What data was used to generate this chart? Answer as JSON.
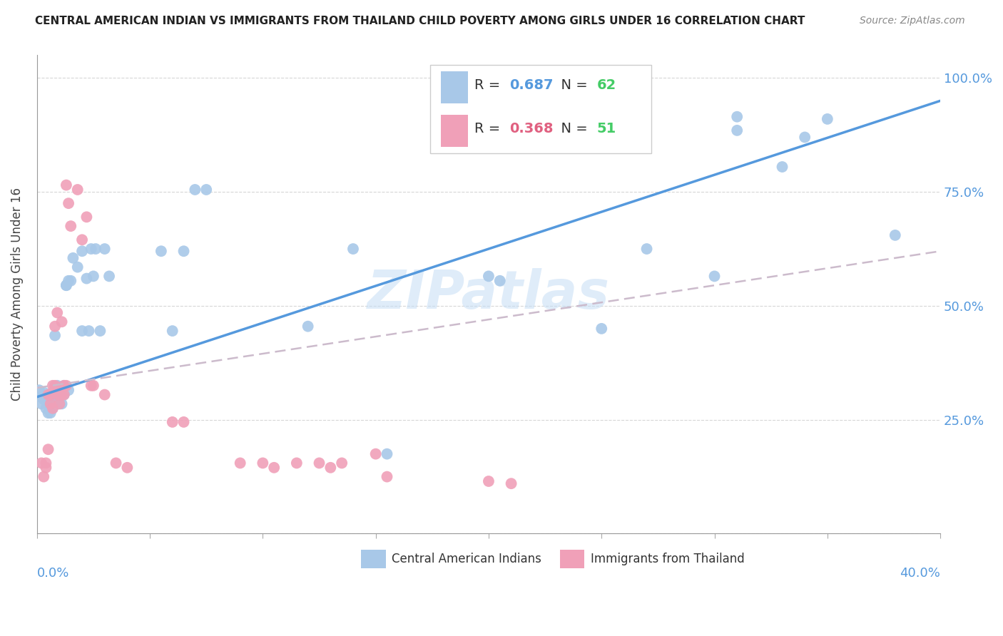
{
  "title": "CENTRAL AMERICAN INDIAN VS IMMIGRANTS FROM THAILAND CHILD POVERTY AMONG GIRLS UNDER 16 CORRELATION CHART",
  "source": "Source: ZipAtlas.com",
  "ylabel": "Child Poverty Among Girls Under 16",
  "legend_blue": {
    "R": 0.687,
    "N": 62,
    "label": "Central American Indians"
  },
  "legend_pink": {
    "R": 0.368,
    "N": 51,
    "label": "Immigrants from Thailand"
  },
  "blue_color": "#a8c8e8",
  "pink_color": "#f0a0b8",
  "blue_line_color": "#5599dd",
  "pink_line_color": "#ccbbcc",
  "blue_line": {
    "x0": 0.0,
    "y0": 0.3,
    "x1": 0.4,
    "y1": 0.95
  },
  "pink_line": {
    "x0": 0.0,
    "y0": 0.32,
    "x1": 0.4,
    "y1": 0.62
  },
  "xlim": [
    0,
    0.4
  ],
  "ylim": [
    0,
    1.05
  ],
  "blue_scatter": [
    [
      0.001,
      0.315
    ],
    [
      0.002,
      0.285
    ],
    [
      0.002,
      0.3
    ],
    [
      0.003,
      0.295
    ],
    [
      0.003,
      0.31
    ],
    [
      0.004,
      0.3
    ],
    [
      0.004,
      0.275
    ],
    [
      0.005,
      0.285
    ],
    [
      0.005,
      0.265
    ],
    [
      0.006,
      0.265
    ],
    [
      0.006,
      0.285
    ],
    [
      0.007,
      0.31
    ],
    [
      0.007,
      0.275
    ],
    [
      0.008,
      0.305
    ],
    [
      0.008,
      0.435
    ],
    [
      0.009,
      0.325
    ],
    [
      0.009,
      0.295
    ],
    [
      0.01,
      0.305
    ],
    [
      0.01,
      0.285
    ],
    [
      0.011,
      0.315
    ],
    [
      0.011,
      0.285
    ],
    [
      0.012,
      0.325
    ],
    [
      0.012,
      0.305
    ],
    [
      0.013,
      0.545
    ],
    [
      0.013,
      0.545
    ],
    [
      0.014,
      0.555
    ],
    [
      0.014,
      0.315
    ],
    [
      0.015,
      0.555
    ],
    [
      0.016,
      0.605
    ],
    [
      0.018,
      0.585
    ],
    [
      0.02,
      0.62
    ],
    [
      0.02,
      0.445
    ],
    [
      0.022,
      0.56
    ],
    [
      0.023,
      0.445
    ],
    [
      0.024,
      0.625
    ],
    [
      0.025,
      0.565
    ],
    [
      0.026,
      0.625
    ],
    [
      0.028,
      0.445
    ],
    [
      0.03,
      0.625
    ],
    [
      0.032,
      0.565
    ],
    [
      0.055,
      0.62
    ],
    [
      0.06,
      0.445
    ],
    [
      0.065,
      0.62
    ],
    [
      0.07,
      0.755
    ],
    [
      0.075,
      0.755
    ],
    [
      0.12,
      0.455
    ],
    [
      0.14,
      0.625
    ],
    [
      0.155,
      0.175
    ],
    [
      0.2,
      0.565
    ],
    [
      0.205,
      0.555
    ],
    [
      0.25,
      0.45
    ],
    [
      0.27,
      0.625
    ],
    [
      0.3,
      0.565
    ],
    [
      0.31,
      0.885
    ],
    [
      0.31,
      0.915
    ],
    [
      0.33,
      0.805
    ],
    [
      0.34,
      0.87
    ],
    [
      0.35,
      0.91
    ],
    [
      0.38,
      0.655
    ]
  ],
  "pink_scatter": [
    [
      0.002,
      0.155
    ],
    [
      0.003,
      0.125
    ],
    [
      0.004,
      0.155
    ],
    [
      0.004,
      0.145
    ],
    [
      0.005,
      0.185
    ],
    [
      0.005,
      0.305
    ],
    [
      0.006,
      0.305
    ],
    [
      0.006,
      0.285
    ],
    [
      0.007,
      0.275
    ],
    [
      0.007,
      0.325
    ],
    [
      0.008,
      0.325
    ],
    [
      0.008,
      0.455
    ],
    [
      0.009,
      0.485
    ],
    [
      0.009,
      0.305
    ],
    [
      0.01,
      0.305
    ],
    [
      0.01,
      0.285
    ],
    [
      0.011,
      0.465
    ],
    [
      0.011,
      0.305
    ],
    [
      0.012,
      0.325
    ],
    [
      0.012,
      0.305
    ],
    [
      0.013,
      0.325
    ],
    [
      0.013,
      0.765
    ],
    [
      0.014,
      0.725
    ],
    [
      0.015,
      0.675
    ],
    [
      0.018,
      0.755
    ],
    [
      0.02,
      0.645
    ],
    [
      0.022,
      0.695
    ],
    [
      0.024,
      0.325
    ],
    [
      0.025,
      0.325
    ],
    [
      0.03,
      0.305
    ],
    [
      0.035,
      0.155
    ],
    [
      0.04,
      0.145
    ],
    [
      0.06,
      0.245
    ],
    [
      0.065,
      0.245
    ],
    [
      0.09,
      0.155
    ],
    [
      0.1,
      0.155
    ],
    [
      0.105,
      0.145
    ],
    [
      0.115,
      0.155
    ],
    [
      0.125,
      0.155
    ],
    [
      0.13,
      0.145
    ],
    [
      0.135,
      0.155
    ],
    [
      0.15,
      0.175
    ],
    [
      0.155,
      0.125
    ],
    [
      0.2,
      0.115
    ],
    [
      0.21,
      0.11
    ]
  ]
}
